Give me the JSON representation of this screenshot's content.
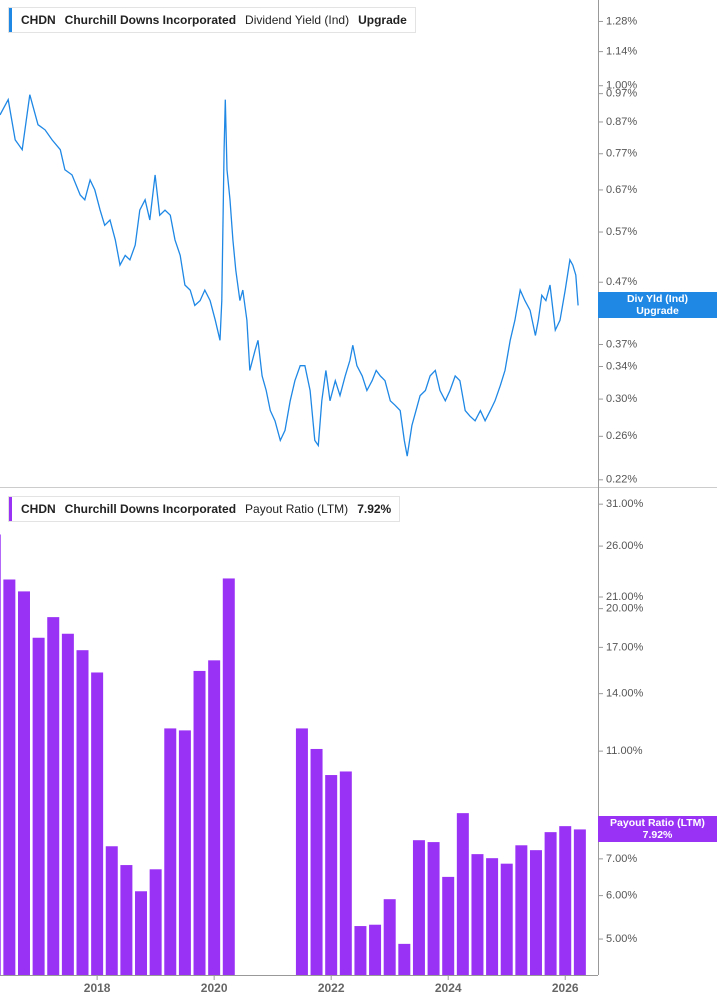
{
  "chart_data": [
    {
      "type": "line",
      "ticker": "CHDN",
      "company": "Churchill Downs Incorporated",
      "rating": "Upgrade",
      "short_name": "Div Yld (Ind)",
      "log_scale": true,
      "xlim": [
        2016.34,
        2026.56
      ],
      "ylim": [
        0.214,
        1.39
      ],
      "yticks": [
        {
          "value": 1.28,
          "label": "1.28%"
        },
        {
          "value": 1.14,
          "label": "1.14%"
        },
        {
          "value": 1.0,
          "label": "1.00%"
        },
        {
          "value": 0.97,
          "label": "0.97%"
        },
        {
          "value": 0.87,
          "label": "0.87%"
        },
        {
          "value": 0.77,
          "label": "0.77%"
        },
        {
          "value": 0.67,
          "label": "0.67%"
        },
        {
          "value": 0.57,
          "label": "0.57%"
        },
        {
          "value": 0.47,
          "label": "0.47%"
        },
        {
          "value": 0.37,
          "label": "0.37%"
        },
        {
          "value": 0.34,
          "label": "0.34%"
        },
        {
          "value": 0.3,
          "label": "0.30%"
        },
        {
          "value": 0.26,
          "label": "0.26%"
        },
        {
          "value": 0.22,
          "label": "0.22%"
        }
      ],
      "x": [
        2016.34,
        2016.48,
        2016.6,
        2016.72,
        2016.85,
        2016.99,
        2017.11,
        2017.23,
        2017.37,
        2017.45,
        2017.57,
        2017.71,
        2017.79,
        2017.88,
        2017.96,
        2018.05,
        2018.13,
        2018.22,
        2018.31,
        2018.39,
        2018.48,
        2018.56,
        2018.65,
        2018.73,
        2018.82,
        2018.9,
        2018.99,
        2019.07,
        2019.16,
        2019.25,
        2019.33,
        2019.42,
        2019.5,
        2019.59,
        2019.67,
        2019.76,
        2019.84,
        2019.93,
        2020.02,
        2020.1,
        2020.13,
        2020.17,
        2020.19,
        2020.22,
        2020.27,
        2020.32,
        2020.37,
        2020.44,
        2020.49,
        2020.56,
        2020.61,
        2020.7,
        2020.75,
        2020.82,
        2020.89,
        2020.96,
        2021.04,
        2021.13,
        2021.21,
        2021.3,
        2021.38,
        2021.47,
        2021.55,
        2021.64,
        2021.72,
        2021.78,
        2021.84,
        2021.91,
        2021.98,
        2022.07,
        2022.15,
        2022.24,
        2022.32,
        2022.37,
        2022.44,
        2022.53,
        2022.61,
        2022.7,
        2022.77,
        2022.84,
        2022.92,
        2023.01,
        2023.09,
        2023.18,
        2023.25,
        2023.3,
        2023.38,
        2023.45,
        2023.52,
        2023.61,
        2023.69,
        2023.78,
        2023.86,
        2023.95,
        2024.03,
        2024.12,
        2024.2,
        2024.29,
        2024.37,
        2024.46,
        2024.55,
        2024.63,
        2024.72,
        2024.8,
        2024.89,
        2024.97,
        2025.06,
        2025.14,
        2025.23,
        2025.31,
        2025.4,
        2025.49,
        2025.54,
        2025.6,
        2025.67,
        2025.74,
        2025.83,
        2025.91,
        2026.0,
        2026.08,
        2026.13,
        2026.18,
        2026.22
      ],
      "series": [
        {
          "name": "Dividend Yield (Ind)",
          "color": "#1f88e5",
          "values": [
            0.894,
            0.948,
            0.812,
            0.782,
            0.966,
            0.861,
            0.844,
            0.812,
            0.782,
            0.724,
            0.71,
            0.657,
            0.645,
            0.696,
            0.67,
            0.62,
            0.585,
            0.597,
            0.553,
            0.502,
            0.521,
            0.512,
            0.542,
            0.62,
            0.645,
            0.597,
            0.71,
            0.608,
            0.62,
            0.608,
            0.553,
            0.521,
            0.465,
            0.456,
            0.43,
            0.438,
            0.456,
            0.438,
            0.406,
            0.376,
            0.438,
            0.782,
            0.948,
            0.724,
            0.645,
            0.553,
            0.492,
            0.438,
            0.456,
            0.406,
            0.335,
            0.362,
            0.376,
            0.328,
            0.31,
            0.287,
            0.276,
            0.256,
            0.266,
            0.298,
            0.322,
            0.341,
            0.341,
            0.31,
            0.256,
            0.251,
            0.298,
            0.335,
            0.298,
            0.322,
            0.304,
            0.328,
            0.348,
            0.369,
            0.341,
            0.328,
            0.31,
            0.322,
            0.335,
            0.328,
            0.322,
            0.298,
            0.293,
            0.287,
            0.256,
            0.241,
            0.271,
            0.287,
            0.304,
            0.31,
            0.328,
            0.335,
            0.31,
            0.298,
            0.31,
            0.328,
            0.322,
            0.287,
            0.281,
            0.276,
            0.287,
            0.276,
            0.287,
            0.298,
            0.316,
            0.335,
            0.376,
            0.406,
            0.456,
            0.438,
            0.422,
            0.383,
            0.406,
            0.447,
            0.438,
            0.465,
            0.391,
            0.406,
            0.456,
            0.512,
            0.502,
            0.483,
            0.43
          ]
        }
      ]
    },
    {
      "type": "bar",
      "ticker": "CHDN",
      "company": "Churchill Downs Incorporated",
      "current_value_label": "7.92%",
      "log_scale": true,
      "xlim": [
        2016.34,
        2026.56
      ],
      "xticks": [
        2018,
        2020,
        2022,
        2024,
        2026
      ],
      "ylim": [
        4.3,
        32.9
      ],
      "yticks": [
        {
          "value": 31,
          "label": "31.00%"
        },
        {
          "value": 26,
          "label": "26.00%"
        },
        {
          "value": 21,
          "label": "21.00%"
        },
        {
          "value": 20,
          "label": "20.00%"
        },
        {
          "value": 17,
          "label": "17.00%"
        },
        {
          "value": 14,
          "label": "14.00%"
        },
        {
          "value": 11,
          "label": "11.00%"
        },
        {
          "value": 7,
          "label": "7.00%"
        },
        {
          "value": 6,
          "label": "6.00%"
        },
        {
          "value": 5,
          "label": "5.00%"
        }
      ],
      "x": [
        2016.25,
        2016.5,
        2016.75,
        2017.0,
        2017.25,
        2017.5,
        2017.75,
        2018.0,
        2018.25,
        2018.5,
        2018.75,
        2019.0,
        2019.25,
        2019.5,
        2019.75,
        2020.0,
        2020.25,
        2021.5,
        2021.75,
        2022.0,
        2022.25,
        2022.5,
        2022.75,
        2023.0,
        2023.25,
        2023.5,
        2023.75,
        2024.0,
        2024.25,
        2024.5,
        2024.75,
        2025.0,
        2025.25,
        2025.5,
        2025.75,
        2026.0,
        2026.25
      ],
      "series": [
        {
          "name": "Payout Ratio (LTM)",
          "color": "#9a32f5",
          "values": [
            27.3,
            22.6,
            21.5,
            17.7,
            19.3,
            18.0,
            16.8,
            15.3,
            7.38,
            6.82,
            6.11,
            6.7,
            12.1,
            12.0,
            15.4,
            16.1,
            22.7,
            12.1,
            11.1,
            9.95,
            10.1,
            5.28,
            5.31,
            5.91,
            4.9,
            7.57,
            7.51,
            6.49,
            8.48,
            7.14,
            7.02,
            6.86,
            7.41,
            7.26,
            7.83,
            8.03,
            7.92
          ]
        }
      ]
    }
  ]
}
